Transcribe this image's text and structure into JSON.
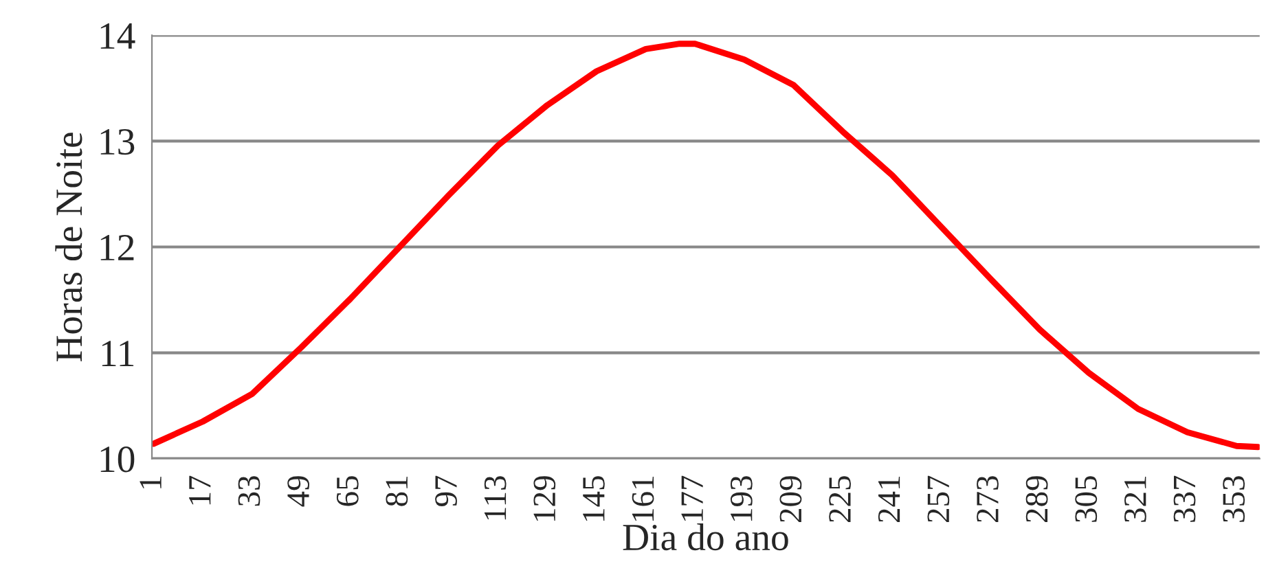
{
  "chart_data": {
    "type": "line",
    "xlabel": "Dia do ano",
    "ylabel": "Horas de Noite",
    "xlim": [
      0.5,
      360.5
    ],
    "xticks": [
      1,
      17,
      33,
      49,
      65,
      81,
      97,
      113,
      129,
      145,
      161,
      177,
      193,
      209,
      225,
      241,
      257,
      273,
      289,
      305,
      321,
      337,
      353
    ],
    "ylim": [
      10,
      14
    ],
    "yticks": [
      10,
      11,
      12,
      13,
      14
    ],
    "grid": "y",
    "marker": "none",
    "line_style": "solid",
    "series": [
      {
        "color": "#ff0000",
        "x": [
          1,
          17,
          33,
          49,
          65,
          81,
          97,
          113,
          129,
          145,
          161,
          172,
          177,
          193,
          209,
          225,
          241,
          257,
          273,
          289,
          305,
          321,
          337,
          353,
          360
        ],
        "values": [
          10.14,
          10.35,
          10.61,
          11.05,
          11.51,
          12.0,
          12.49,
          12.96,
          13.34,
          13.66,
          13.87,
          13.92,
          13.92,
          13.77,
          13.53,
          13.09,
          12.68,
          12.19,
          11.7,
          11.22,
          10.81,
          10.47,
          10.25,
          10.12,
          10.11
        ]
      }
    ]
  }
}
